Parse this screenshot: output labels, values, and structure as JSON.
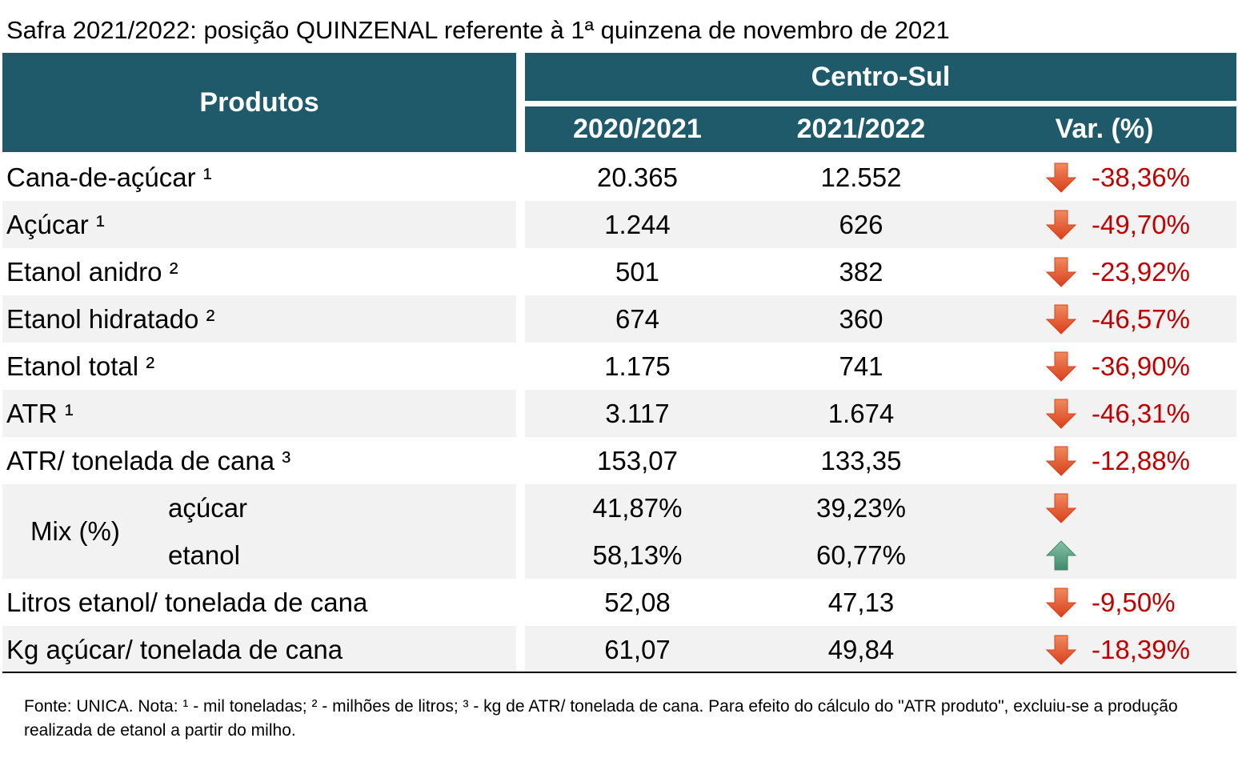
{
  "title": "Safra 2021/2022: posição QUINZENAL referente à 1ª quinzena de novembro de 2021",
  "table": {
    "header": {
      "products": "Produtos",
      "region": "Centro-Sul",
      "columns": [
        "2020/2021",
        "2021/2022",
        "Var. (%)"
      ]
    },
    "rows": [
      {
        "label": "Cana-de-açúcar ¹",
        "values": [
          "20.365",
          "12.552"
        ],
        "var": "-38,36%",
        "arrow": "down"
      },
      {
        "label": "Açúcar ¹",
        "values": [
          "1.244",
          "626"
        ],
        "var": "-49,70%",
        "arrow": "down"
      },
      {
        "label": "Etanol anidro ²",
        "values": [
          "501",
          "382"
        ],
        "var": "-23,92%",
        "arrow": "down"
      },
      {
        "label": "Etanol hidratado ²",
        "values": [
          "674",
          "360"
        ],
        "var": "-46,57%",
        "arrow": "down"
      },
      {
        "label": "Etanol total ²",
        "values": [
          "1.175",
          "741"
        ],
        "var": "-36,90%",
        "arrow": "down"
      },
      {
        "label": "ATR ¹",
        "values": [
          "3.117",
          "1.674"
        ],
        "var": "-46,31%",
        "arrow": "down"
      },
      {
        "label": "ATR/ tonelada de cana ³",
        "values": [
          "153,07",
          "133,35"
        ],
        "var": "-12,88%",
        "arrow": "down"
      }
    ],
    "mix": {
      "label": "Mix (%)",
      "rows": [
        {
          "label": "açúcar",
          "values": [
            "41,87%",
            "39,23%"
          ],
          "arrow": "down"
        },
        {
          "label": "etanol",
          "values": [
            "58,13%",
            "60,77%"
          ],
          "arrow": "up"
        }
      ]
    },
    "rows_after": [
      {
        "label": "Litros etanol/ tonelada de cana",
        "values": [
          "52,08",
          "47,13"
        ],
        "var": "-9,50%",
        "arrow": "down"
      },
      {
        "label": "Kg açúcar/ tonelada de cana",
        "values": [
          "61,07",
          "49,84"
        ],
        "var": "-18,39%",
        "arrow": "down"
      }
    ]
  },
  "footnote": "Fonte: UNICA. Nota: ¹ - mil toneladas; ² - milhões de litros; ³ - kg de ATR/ tonelada de cana. Para efeito do cálculo do \"ATR produto\", excluiu-se a produção realizada de etanol a partir do milho."
}
